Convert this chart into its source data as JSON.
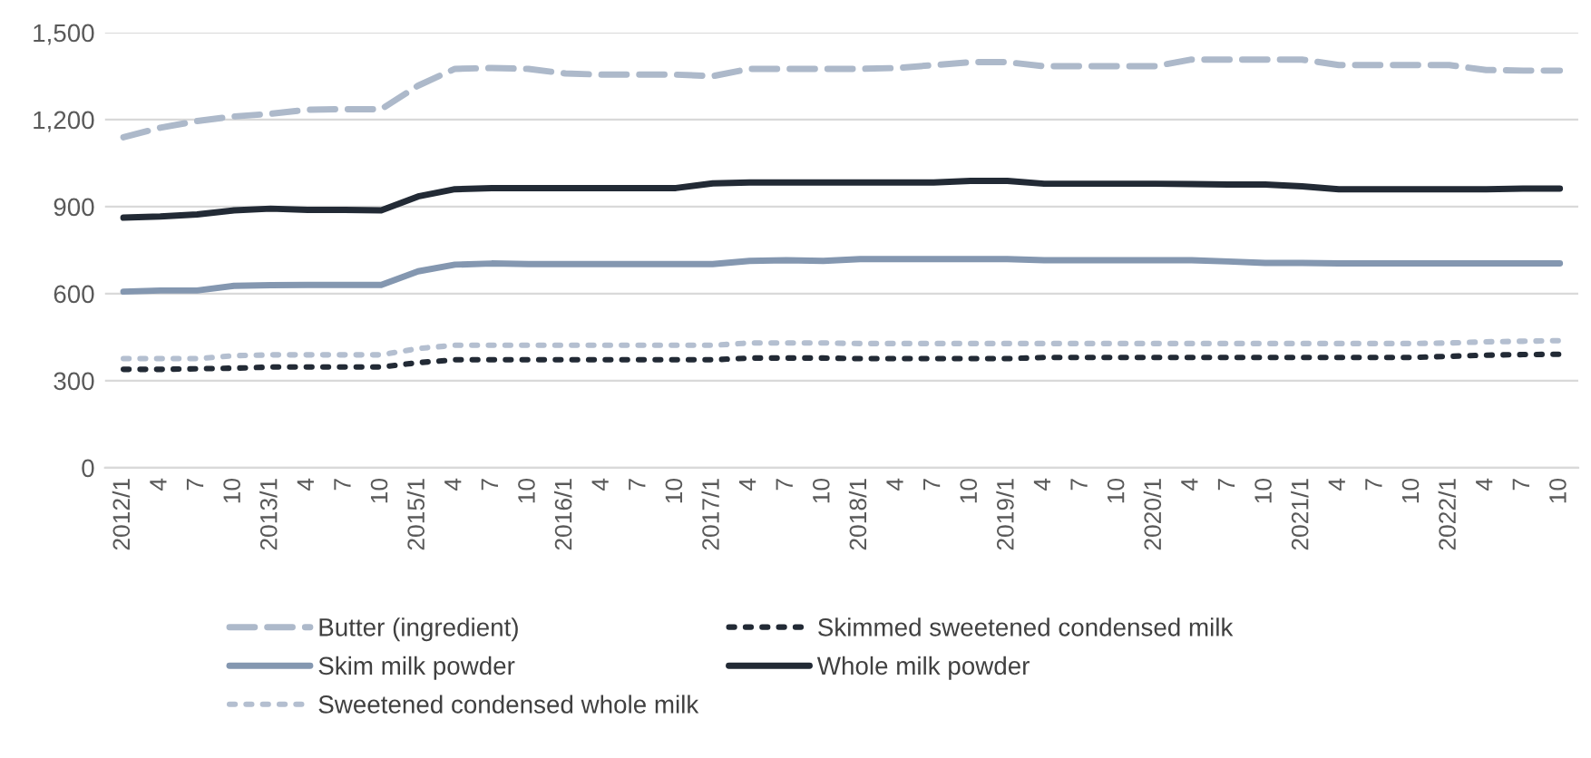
{
  "chart_data": {
    "type": "line",
    "categories": [
      "2012/1",
      "4",
      "7",
      "10",
      "2013/1",
      "4",
      "7",
      "10",
      "2015/1",
      "4",
      "7",
      "10",
      "2016/1",
      "4",
      "7",
      "10",
      "2017/1",
      "4",
      "7",
      "10",
      "2018/1",
      "4",
      "7",
      "10",
      "2019/1",
      "4",
      "7",
      "10",
      "2020/1",
      "4",
      "7",
      "10",
      "2021/1",
      "4",
      "7",
      "10",
      "2022/1",
      "4",
      "7",
      "10"
    ],
    "series": [
      {
        "name": "Butter (ingredient)",
        "color": "#adb9ca",
        "line_style": "dashed",
        "values": [
          1139,
          1172,
          1195,
          1211,
          1220,
          1234,
          1236,
          1236,
          1317,
          1375,
          1378,
          1375,
          1359,
          1355,
          1355,
          1355,
          1350,
          1375,
          1375,
          1375,
          1375,
          1378,
          1388,
          1398,
          1398,
          1384,
          1384,
          1384,
          1384,
          1407,
          1407,
          1407,
          1407,
          1388,
          1388,
          1388,
          1388,
          1371,
          1369,
          1369
        ]
      },
      {
        "name": "Skim milk powder",
        "color": "#8497b0",
        "line_style": "solid",
        "values": [
          607,
          611,
          611,
          627,
          629,
          630,
          630,
          630,
          677,
          700,
          704,
          702,
          702,
          702,
          702,
          702,
          702,
          713,
          715,
          713,
          719,
          719,
          719,
          719,
          719,
          715,
          715,
          715,
          715,
          715,
          711,
          706,
          706,
          704,
          704,
          704,
          704,
          704,
          704,
          704
        ]
      },
      {
        "name": "Sweetened condensed whole milk",
        "color": "#b4bfd0",
        "line_style": "dotted",
        "values": [
          376,
          376,
          376,
          386,
          389,
          389,
          389,
          389,
          411,
          422,
          422,
          422,
          422,
          422,
          422,
          422,
          422,
          430,
          430,
          430,
          428,
          428,
          428,
          428,
          428,
          428,
          428,
          428,
          428,
          428,
          428,
          428,
          428,
          428,
          428,
          428,
          430,
          434,
          436,
          438
        ]
      },
      {
        "name": "Skimmed sweetened condensed milk",
        "color": "#222a35",
        "line_style": "dotted",
        "values": [
          339,
          339,
          341,
          343,
          347,
          347,
          347,
          347,
          362,
          372,
          372,
          372,
          372,
          372,
          372,
          372,
          372,
          378,
          378,
          378,
          376,
          376,
          376,
          376,
          376,
          380,
          380,
          380,
          380,
          380,
          380,
          380,
          380,
          380,
          380,
          380,
          384,
          388,
          390,
          391
        ]
      },
      {
        "name": "Whole milk powder",
        "color": "#222a35",
        "line_style": "solid",
        "values": [
          862,
          866,
          873,
          887,
          893,
          889,
          889,
          887,
          935,
          960,
          964,
          964,
          964,
          964,
          964,
          964,
          980,
          983,
          983,
          983,
          983,
          983,
          983,
          989,
          989,
          979,
          979,
          979,
          979,
          978,
          976,
          976,
          970,
          960,
          960,
          960,
          960,
          960,
          962,
          962
        ]
      }
    ],
    "ylim": [
      0,
      1500
    ],
    "yticks": [
      {
        "value": 0,
        "label": "0"
      },
      {
        "value": 300,
        "label": "300"
      },
      {
        "value": 600,
        "label": "600"
      },
      {
        "value": 900,
        "label": "900"
      },
      {
        "value": 1200,
        "label": "1,200"
      },
      {
        "value": 1500,
        "label": "1,500"
      }
    ],
    "grid": "y",
    "legend": "bottom",
    "marker": "none"
  }
}
